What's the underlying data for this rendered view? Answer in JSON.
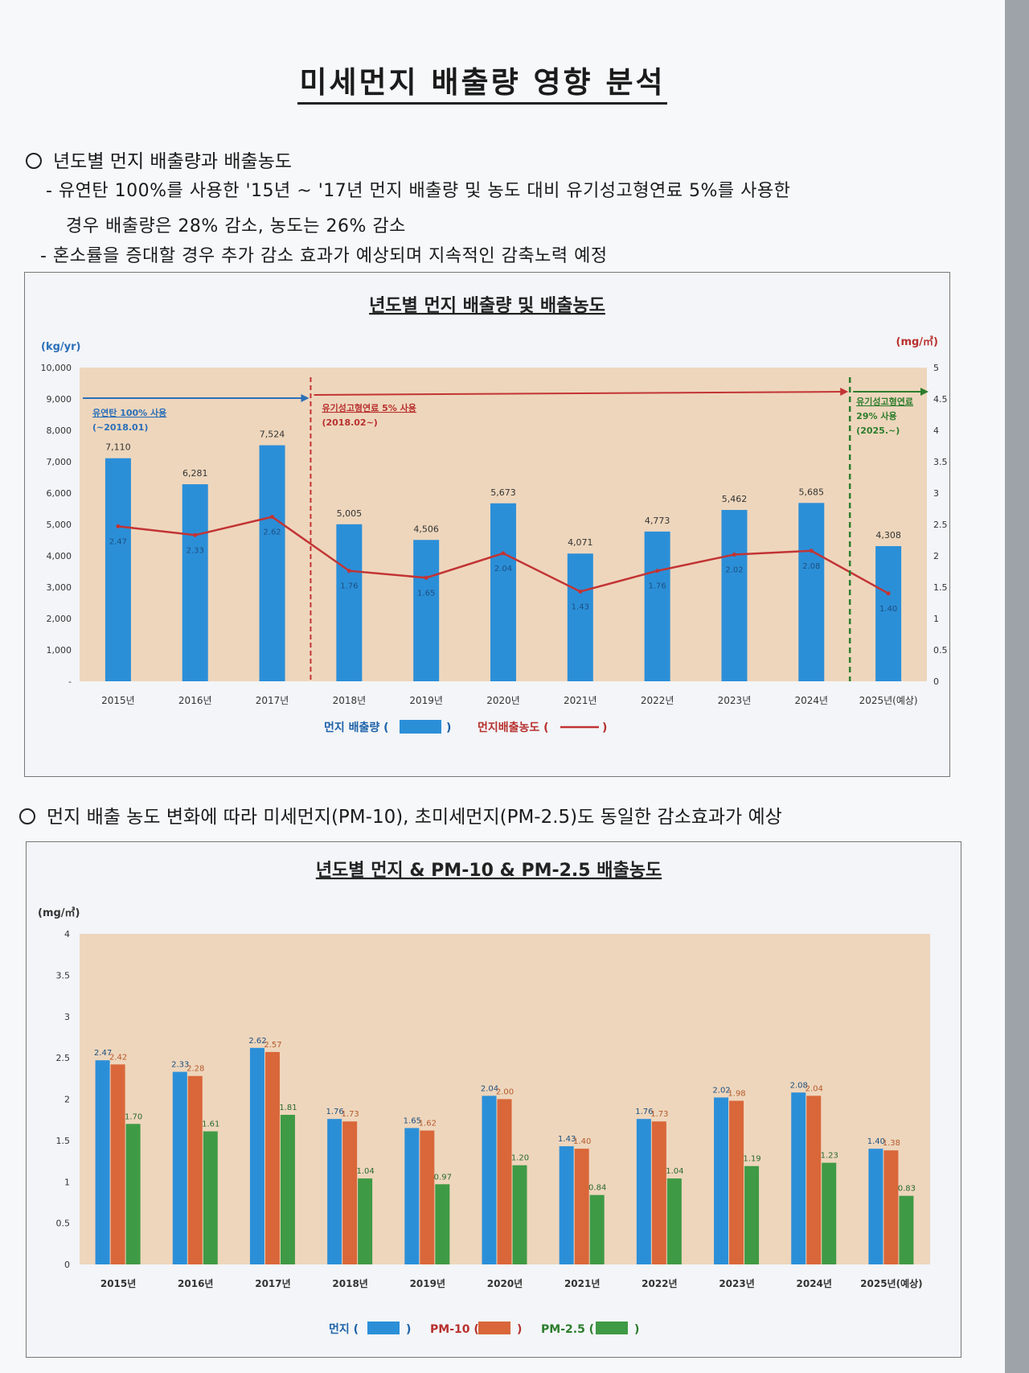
{
  "doc": {
    "title": "미세먼지 배출량 영향 분석",
    "section1": {
      "heading": "년도별 먼지 배출량과 배출농도",
      "bullets": [
        "- 유연탄 100%를 사용한 '15년 ~ '17년 먼지 배출량 및 농도 대비 유기성고형연료 5%를 사용한",
        "경우 배출량은 28% 감소, 농도는 26% 감소",
        "- 혼소률을 증대할 경우 추가 감소 효과가 예상되며 지속적인 감축노력 예정"
      ]
    },
    "section2": {
      "heading": "먼지 배출 농도 변화에 따라 미세먼지(PM-10), 초미세먼지(PM-2.5)도 동일한 감소효과가 예상"
    }
  },
  "colors": {
    "dust": "#2b8fd8",
    "conc": "#c23434",
    "pm10": "#d9673a",
    "pm25": "#3f9a45",
    "bg": "#eed6bc"
  },
  "chart_data": [
    {
      "type": "bar",
      "title": "년도별 먼지 배출량 및 배출농도",
      "categories": [
        "2015년",
        "2016년",
        "2017년",
        "2018년",
        "2019년",
        "2020년",
        "2021년",
        "2022년",
        "2023년",
        "2024년",
        "2025년(예상)"
      ],
      "y_unit_left": "(kg/yr)",
      "y_unit_right": "(mg/㎥)",
      "ylim_left": [
        0,
        10000
      ],
      "ylim_right": [
        0,
        5
      ],
      "yticks_left": [
        "-",
        "1,000",
        "2,000",
        "3,000",
        "4,000",
        "5,000",
        "6,000",
        "7,000",
        "8,000",
        "9,000",
        "10,000"
      ],
      "yticks_right": [
        "0",
        "0.5",
        "1",
        "1.5",
        "2",
        "2.5",
        "3",
        "3.5",
        "4",
        "4.5",
        "5"
      ],
      "series": [
        {
          "name": "먼지 배출량",
          "kind": "bar",
          "values": [
            7110,
            6281,
            7524,
            5005,
            4506,
            5673,
            4071,
            4773,
            5462,
            5685,
            4308
          ],
          "labels": [
            "7,110",
            "6,281",
            "7,524",
            "5,005",
            "4,506",
            "5,673",
            "4,071",
            "4,773",
            "5,462",
            "5,685",
            "4,308"
          ]
        },
        {
          "name": "먼지배출농도",
          "kind": "line",
          "values": [
            2.47,
            2.33,
            2.62,
            1.76,
            1.65,
            2.04,
            1.43,
            1.76,
            2.02,
            2.08,
            1.4
          ],
          "labels": [
            "2.47",
            "2.33",
            "2.62",
            "1.76",
            "1.65",
            "2.04",
            "1.43",
            "1.76",
            "2.02",
            "2.08",
            "1.40"
          ]
        }
      ],
      "annotations": [
        {
          "lines": [
            "유연탄 100% 사용",
            "(~2018.01)"
          ],
          "color": "#2b6fb8"
        },
        {
          "lines": [
            "유기성고형연료 5% 사용",
            "(2018.02~)"
          ],
          "color": "#b8312f"
        },
        {
          "lines": [
            "유기성고형연료",
            "29% 사용",
            "(2025.~)"
          ],
          "color": "#2d7d2d"
        }
      ],
      "legend": [
        {
          "label": "먼지 배출량 (",
          "close": ")"
        },
        {
          "label": "먼지배출농도 (",
          "close": ")"
        }
      ],
      "legend_position": "bottom"
    },
    {
      "type": "bar",
      "title": "년도별 먼지 & PM-10 & PM-2.5 배출농도",
      "categories": [
        "2015년",
        "2016년",
        "2017년",
        "2018년",
        "2019년",
        "2020년",
        "2021년",
        "2022년",
        "2023년",
        "2024년",
        "2025년(예상)"
      ],
      "y_unit": "(mg/㎥)",
      "ylim": [
        0,
        4
      ],
      "yticks": [
        "0",
        "0.5",
        "1",
        "1.5",
        "2",
        "2.5",
        "3",
        "3.5",
        "4"
      ],
      "series": [
        {
          "name": "먼지",
          "values": [
            2.47,
            2.33,
            2.62,
            1.76,
            1.65,
            2.04,
            1.43,
            1.76,
            2.02,
            2.08,
            1.4
          ],
          "labels": [
            "2.47",
            "2.33",
            "2.62",
            "1.76",
            "1.65",
            "2.04",
            "1.43",
            "1.76",
            "2.02",
            "2.08",
            "1.40"
          ]
        },
        {
          "name": "PM-10",
          "values": [
            2.42,
            2.28,
            2.57,
            1.73,
            1.62,
            2.0,
            1.4,
            1.73,
            1.98,
            2.04,
            1.38
          ],
          "labels": [
            "2.42",
            "2.28",
            "2.57",
            "1.73",
            "1.62",
            "2.00",
            "1.40",
            "1.73",
            "1.98",
            "2.04",
            "1.38"
          ]
        },
        {
          "name": "PM-2.5",
          "values": [
            1.7,
            1.61,
            1.81,
            1.04,
            0.97,
            1.2,
            0.84,
            1.04,
            1.19,
            1.23,
            0.83
          ],
          "labels": [
            "1.70",
            "1.61",
            "1.81",
            "1.04",
            "0.97",
            "1.20",
            "0.84",
            "1.04",
            "1.19",
            "1.23",
            "0.83"
          ]
        }
      ],
      "legend": [
        {
          "label": "먼지 (",
          "close": ")"
        },
        {
          "label": "PM-10 (",
          "close": ")"
        },
        {
          "label": "PM-2.5 (",
          "close": ")"
        }
      ],
      "legend_position": "bottom"
    }
  ]
}
